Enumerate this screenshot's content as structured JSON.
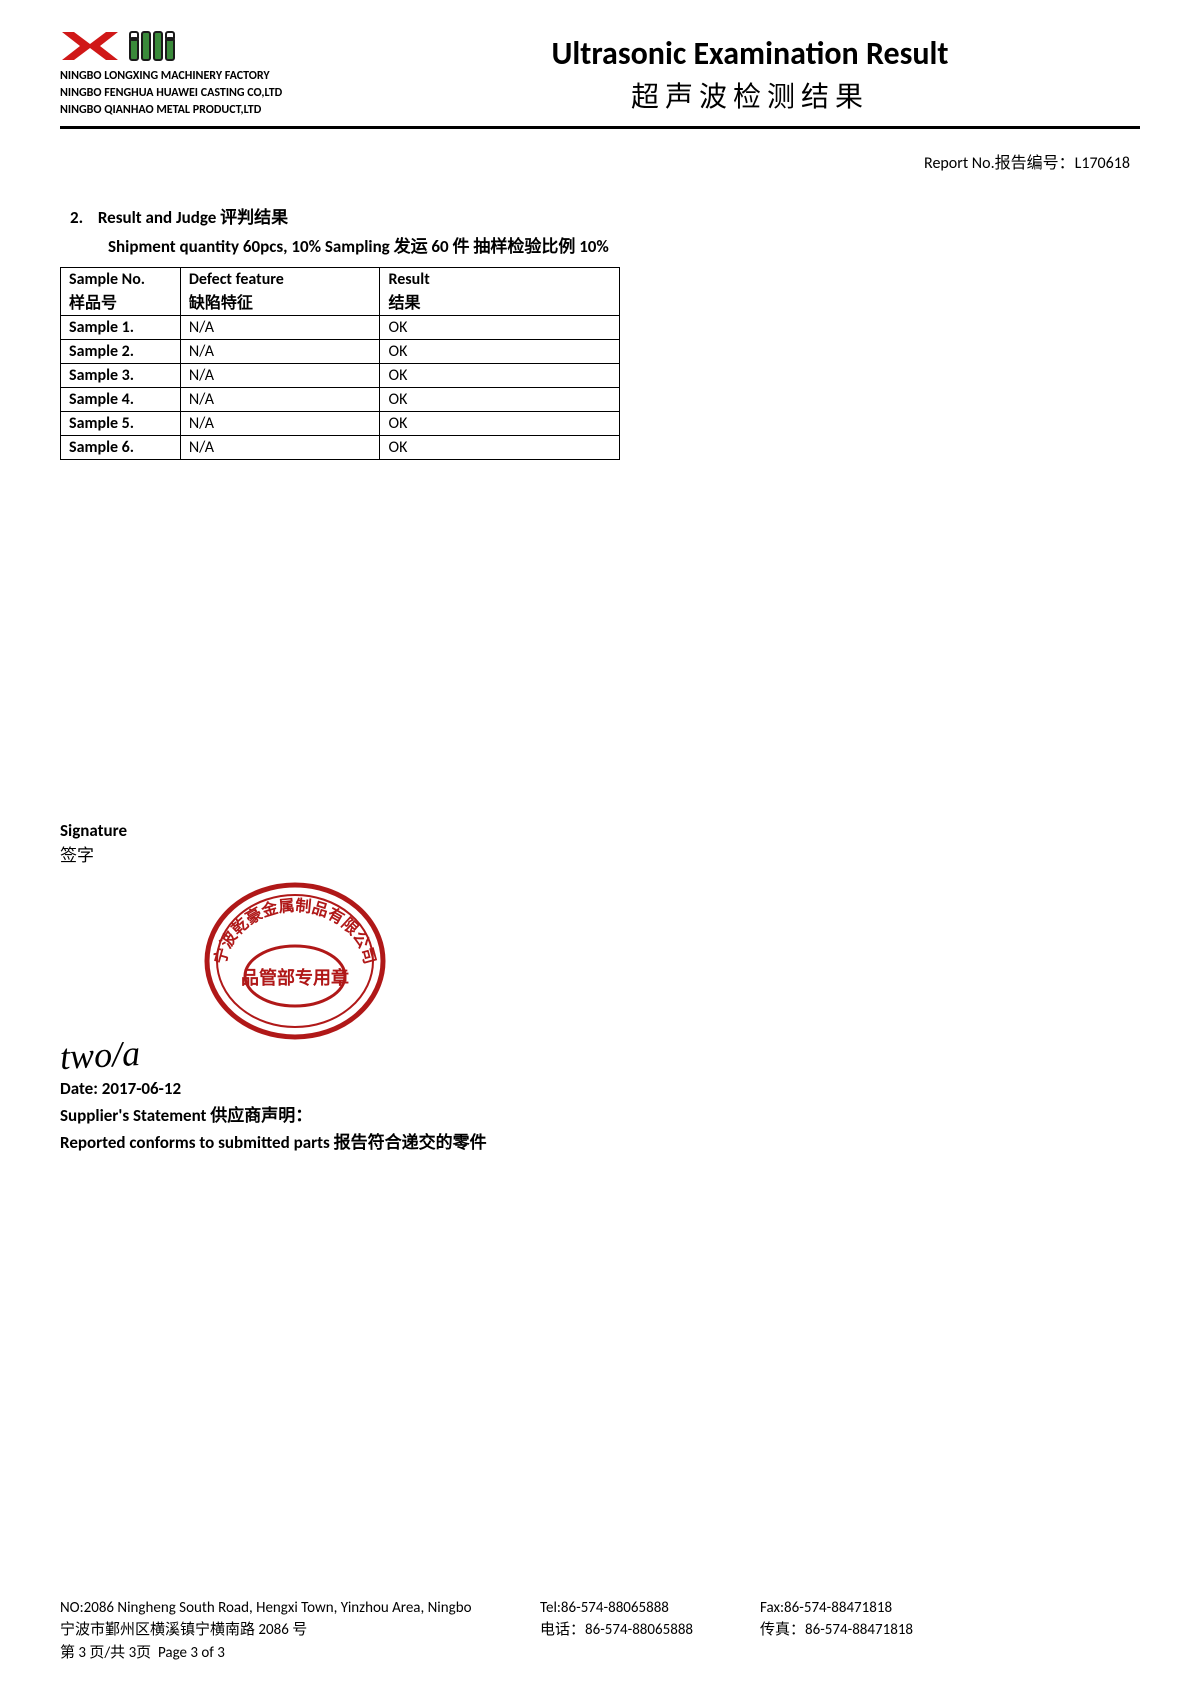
{
  "header": {
    "company_lines": [
      "NINGBO LONGXING MACHINERY FACTORY",
      "NINGBO FENGHUA HUAWEI CASTING CO,LTD",
      "NINGBO QIANHAO METAL PRODUCT,LTD"
    ],
    "title_en": "Ultrasonic Examination Result",
    "title_zh": "超声波检测结果",
    "logo_lx_color": "#d01818",
    "logo_hw_fill": "#3a8a3a",
    "logo_hw_stroke": "#1a1a1a"
  },
  "report_no": {
    "label": "Report No.报告编号：",
    "value": "L170618"
  },
  "section": {
    "index": "2.",
    "title": "Result and  Judge 评判结果",
    "subtitle": "Shipment quantity 60pcs,  10% Sampling 发运 60 件 抽样检验比例 10%"
  },
  "table": {
    "columns": [
      {
        "en": "Sample No.",
        "zh": "样品号"
      },
      {
        "en": "Defect feature",
        "zh": "缺陷特征"
      },
      {
        "en": "Result",
        "zh": "结果"
      }
    ],
    "rows": [
      {
        "sample": "Sample 1.",
        "defect": "N/A",
        "result": "OK"
      },
      {
        "sample": "Sample 2.",
        "defect": "N/A",
        "result": "OK"
      },
      {
        "sample": "Sample 3.",
        "defect": "N/A",
        "result": "OK"
      },
      {
        "sample": "Sample 4.",
        "defect": "N/A",
        "result": "OK"
      },
      {
        "sample": "Sample 5.",
        "defect": "N/A",
        "result": "OK"
      },
      {
        "sample": "Sample 6.",
        "defect": "N/A",
        "result": "OK"
      }
    ]
  },
  "signature": {
    "label_en": "Signature",
    "label_zh": "签字",
    "scribble": "two/a",
    "stamp_color": "#b01818",
    "stamp_text_outer": "宁波乾豪金属制品有限公司",
    "stamp_text_inner": "品管部专用章"
  },
  "date": {
    "label": "Date: ",
    "value": "2017-06-12"
  },
  "supplier": "Supplier's Statement 供应商声明：",
  "conform": "Reported conforms to submitted parts 报告符合递交的零件",
  "footer": {
    "addr_en": "NO:2086 Ningheng South Road, Hengxi Town, Yinzhou Area, Ningbo",
    "tel_en": "Tel:86-574-88065888",
    "fax_en": "Fax:86-574-88471818",
    "addr_zh": "宁波市鄞州区横溪镇宁横南路 2086 号",
    "tel_zh": "电话：86-574-88065888",
    "fax_zh": "传真：86-574-88471818",
    "page_zh": "第 3 页/共 3页",
    "page_en": "Page 3 of 3"
  }
}
